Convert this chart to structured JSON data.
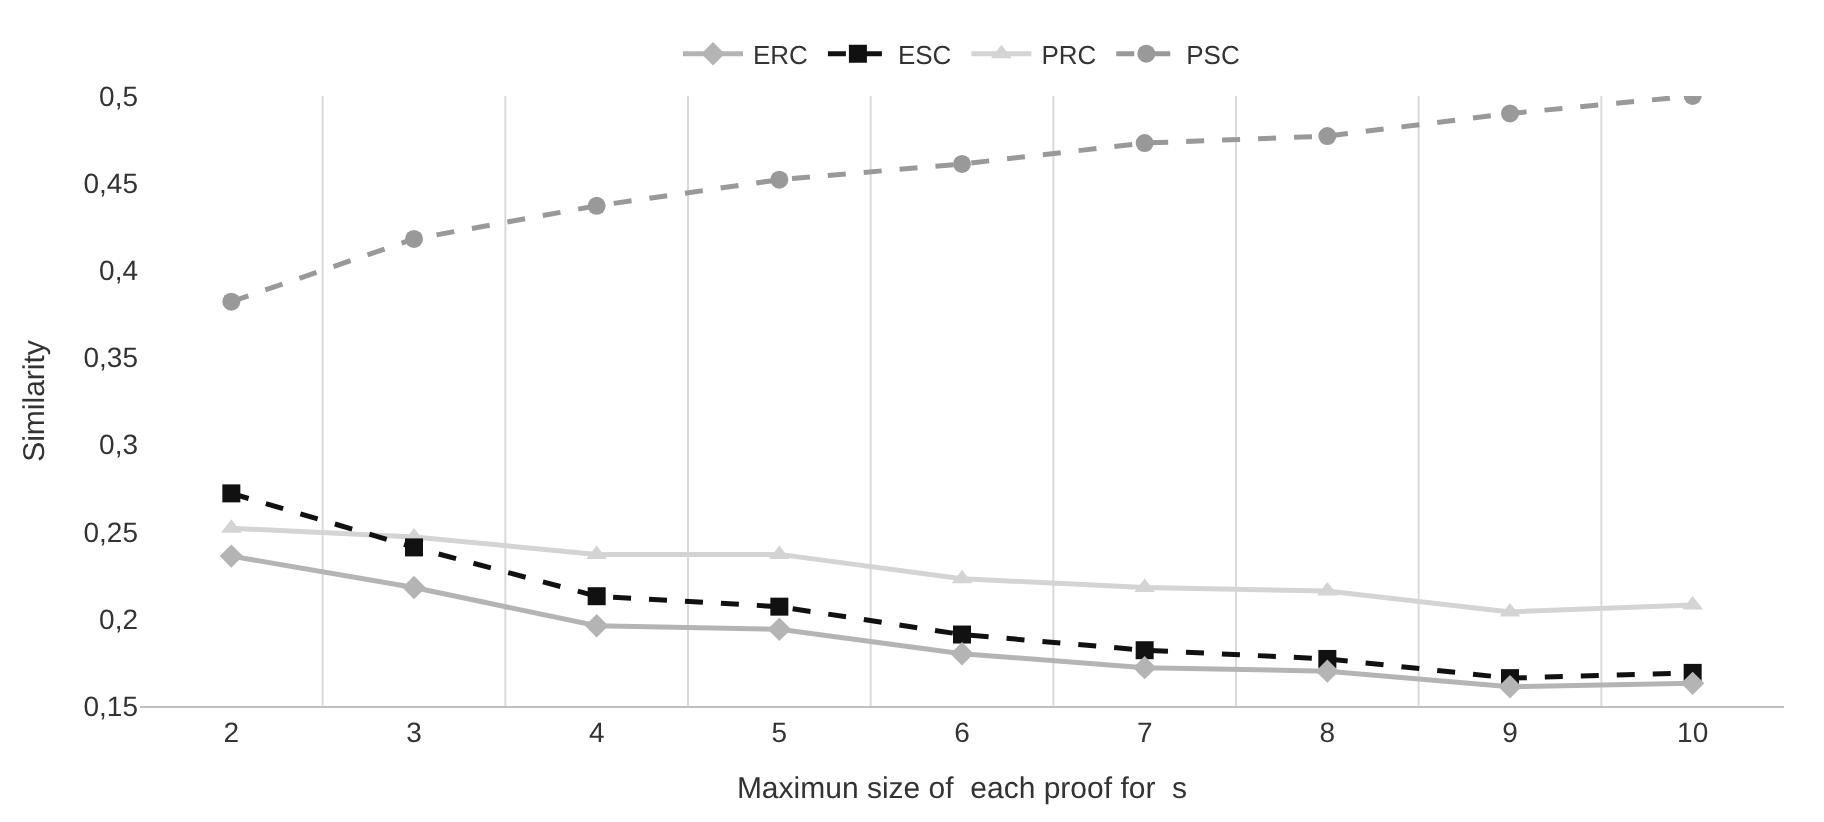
{
  "chart_data": {
    "type": "line",
    "xlabel": "Maximun size of  each proof for  s",
    "ylabel": "Similarity",
    "categories": [
      "2",
      "3",
      "4",
      "5",
      "6",
      "7",
      "8",
      "9",
      "10"
    ],
    "series": [
      {
        "name": "ERC",
        "color": "#b4b4b4",
        "marker": "diamond",
        "line_style": "solid",
        "values": [
          0.236,
          0.218,
          0.196,
          0.194,
          0.18,
          0.172,
          0.17,
          0.161,
          0.163
        ]
      },
      {
        "name": "ESC",
        "color": "#111111",
        "marker": "square",
        "line_style": "dashed",
        "values": [
          0.272,
          0.241,
          0.213,
          0.207,
          0.191,
          0.182,
          0.177,
          0.166,
          0.169
        ]
      },
      {
        "name": "PRC",
        "color": "#d4d4d4",
        "marker": "triangle",
        "line_style": "solid",
        "values": [
          0.252,
          0.247,
          0.237,
          0.237,
          0.223,
          0.218,
          0.216,
          0.204,
          0.208
        ]
      },
      {
        "name": "PSC",
        "color": "#999999",
        "marker": "circle",
        "line_style": "dashed",
        "values": [
          0.382,
          0.418,
          0.437,
          0.452,
          0.461,
          0.473,
          0.477,
          0.49,
          0.5
        ]
      }
    ],
    "ylim": [
      0.15,
      0.5
    ],
    "yticks": [
      {
        "value": 0.15,
        "label": "0,15"
      },
      {
        "value": 0.2,
        "label": "0,2"
      },
      {
        "value": 0.25,
        "label": "0,25"
      },
      {
        "value": 0.3,
        "label": "0,3"
      },
      {
        "value": 0.35,
        "label": "0,35"
      },
      {
        "value": 0.4,
        "label": "0,4"
      },
      {
        "value": 0.45,
        "label": "0,45"
      },
      {
        "value": 0.5,
        "label": "0,5"
      }
    ],
    "grid": "x",
    "legend": "top"
  }
}
